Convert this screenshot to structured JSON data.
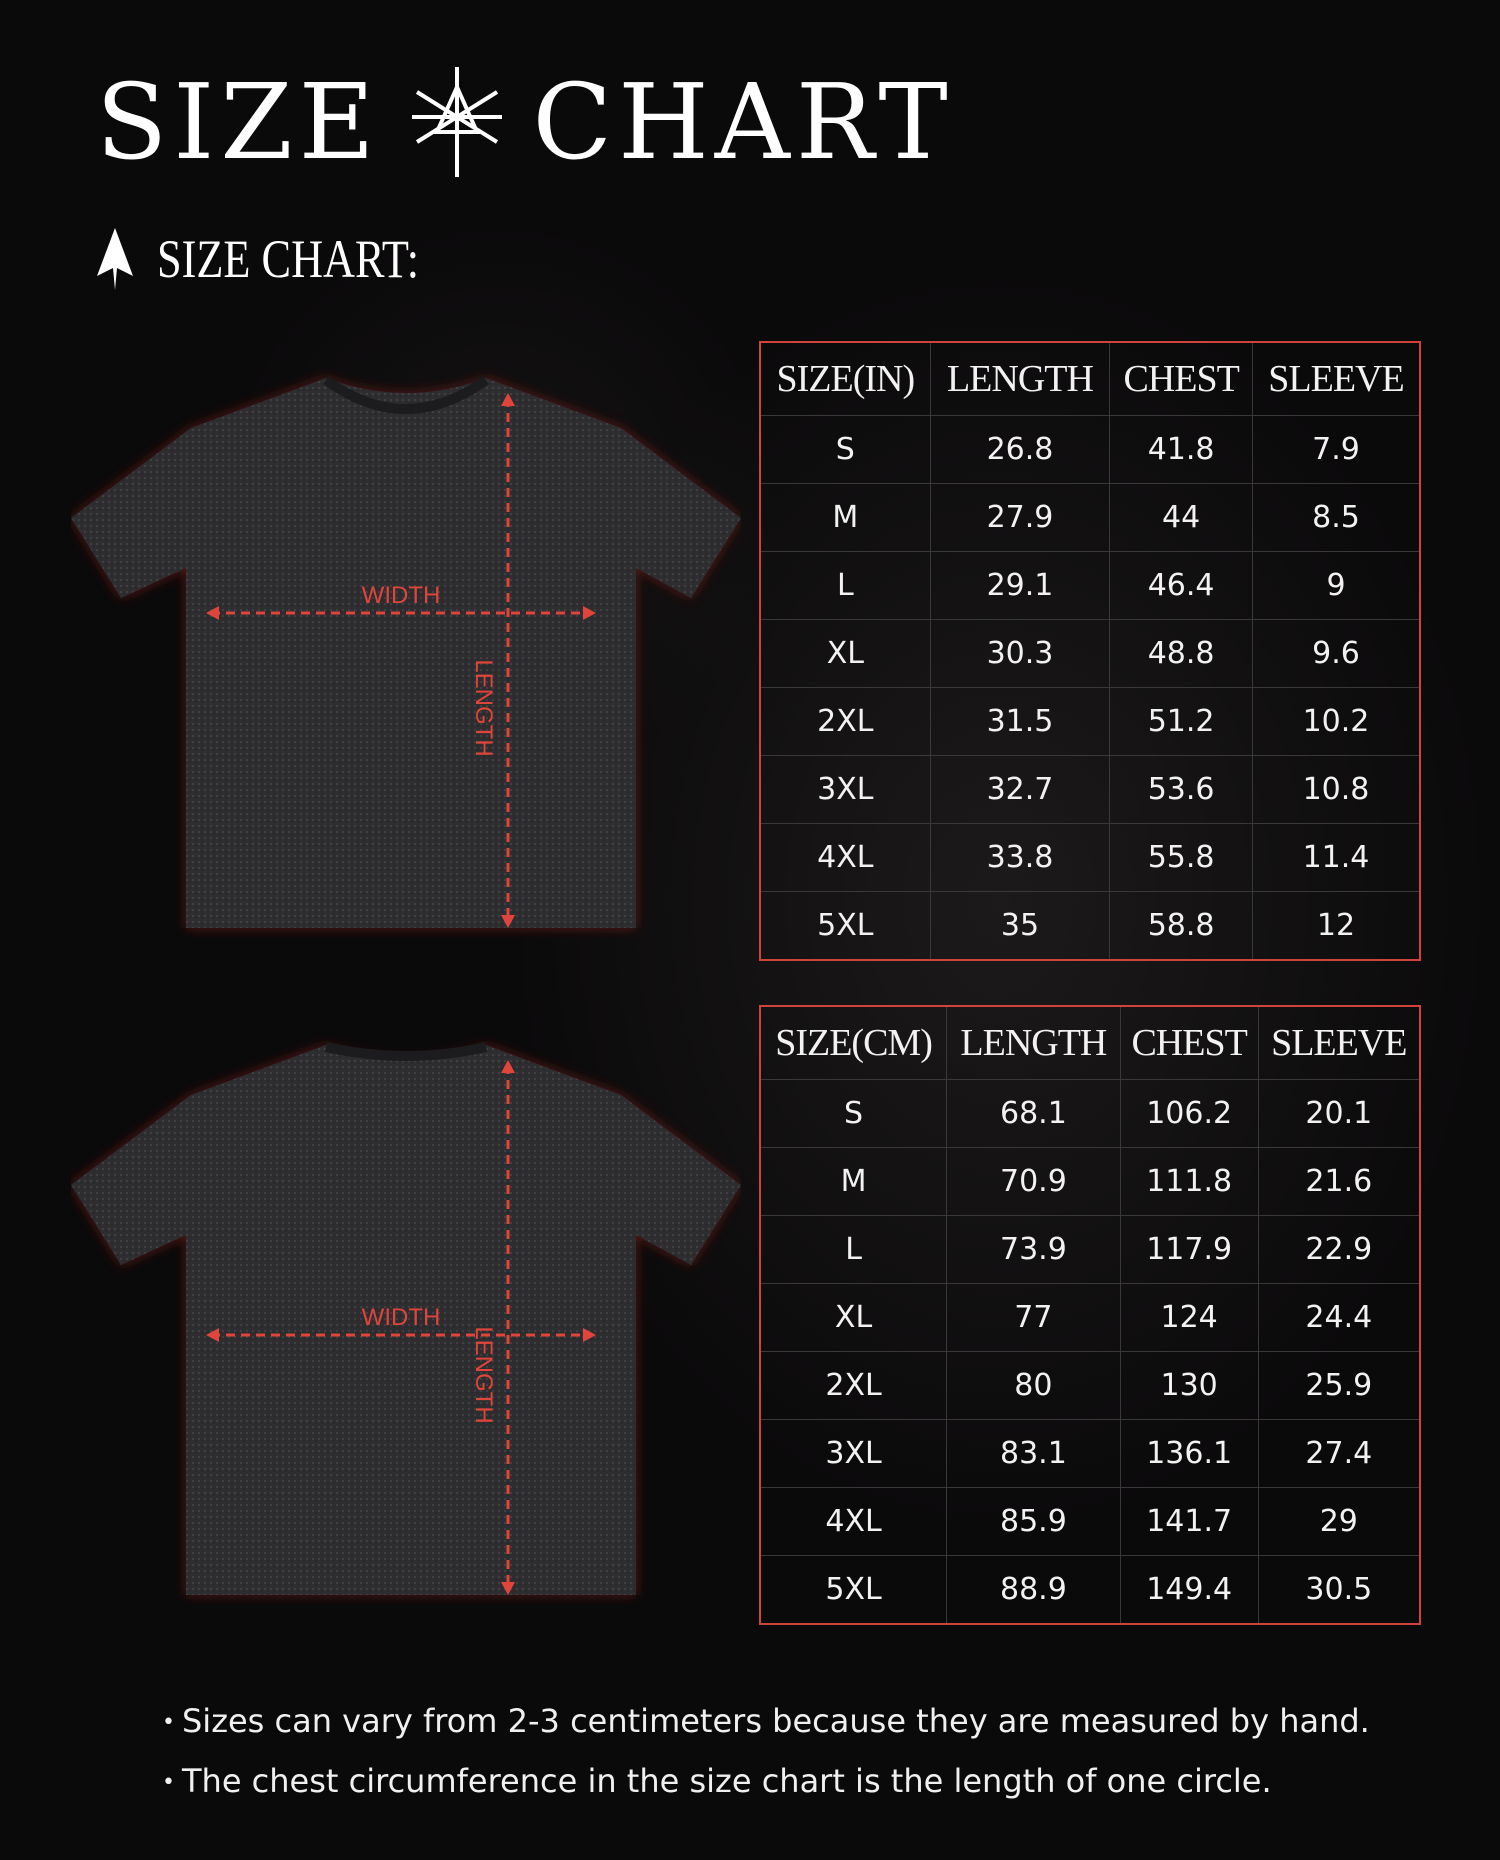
{
  "header": {
    "title_left": "SIZE",
    "title_right": "CHART",
    "subtitle": "SIZE CHART:"
  },
  "diagram": {
    "width_label": "WIDTH",
    "length_label": "LENGTH",
    "accent": "#e0453b"
  },
  "tables": [
    {
      "headers": [
        "SIZE(IN)",
        "LENGTH",
        "CHEST",
        "SLEEVE"
      ],
      "rows": [
        [
          "S",
          "26.8",
          "41.8",
          "7.9"
        ],
        [
          "M",
          "27.9",
          "44",
          "8.5"
        ],
        [
          "L",
          "29.1",
          "46.4",
          "9"
        ],
        [
          "XL",
          "30.3",
          "48.8",
          "9.6"
        ],
        [
          "2XL",
          "31.5",
          "51.2",
          "10.2"
        ],
        [
          "3XL",
          "32.7",
          "53.6",
          "10.8"
        ],
        [
          "4XL",
          "33.8",
          "55.8",
          "11.4"
        ],
        [
          "5XL",
          "35",
          "58.8",
          "12"
        ]
      ]
    },
    {
      "headers": [
        "SIZE(CM)",
        "LENGTH",
        "CHEST",
        "SLEEVE"
      ],
      "rows": [
        [
          "S",
          "68.1",
          "106.2",
          "20.1"
        ],
        [
          "M",
          "70.9",
          "111.8",
          "21.6"
        ],
        [
          "L",
          "73.9",
          "117.9",
          "22.9"
        ],
        [
          "XL",
          "77",
          "124",
          "24.4"
        ],
        [
          "2XL",
          "80",
          "130",
          "25.9"
        ],
        [
          "3XL",
          "83.1",
          "136.1",
          "27.4"
        ],
        [
          "4XL",
          "85.9",
          "141.7",
          "29"
        ],
        [
          "5XL",
          "88.9",
          "149.4",
          "30.5"
        ]
      ]
    }
  ],
  "notes": [
    "Sizes can vary from 2-3 centimeters because they are measured by hand.",
    "The chest circumference in the size chart is the length of one circle."
  ]
}
